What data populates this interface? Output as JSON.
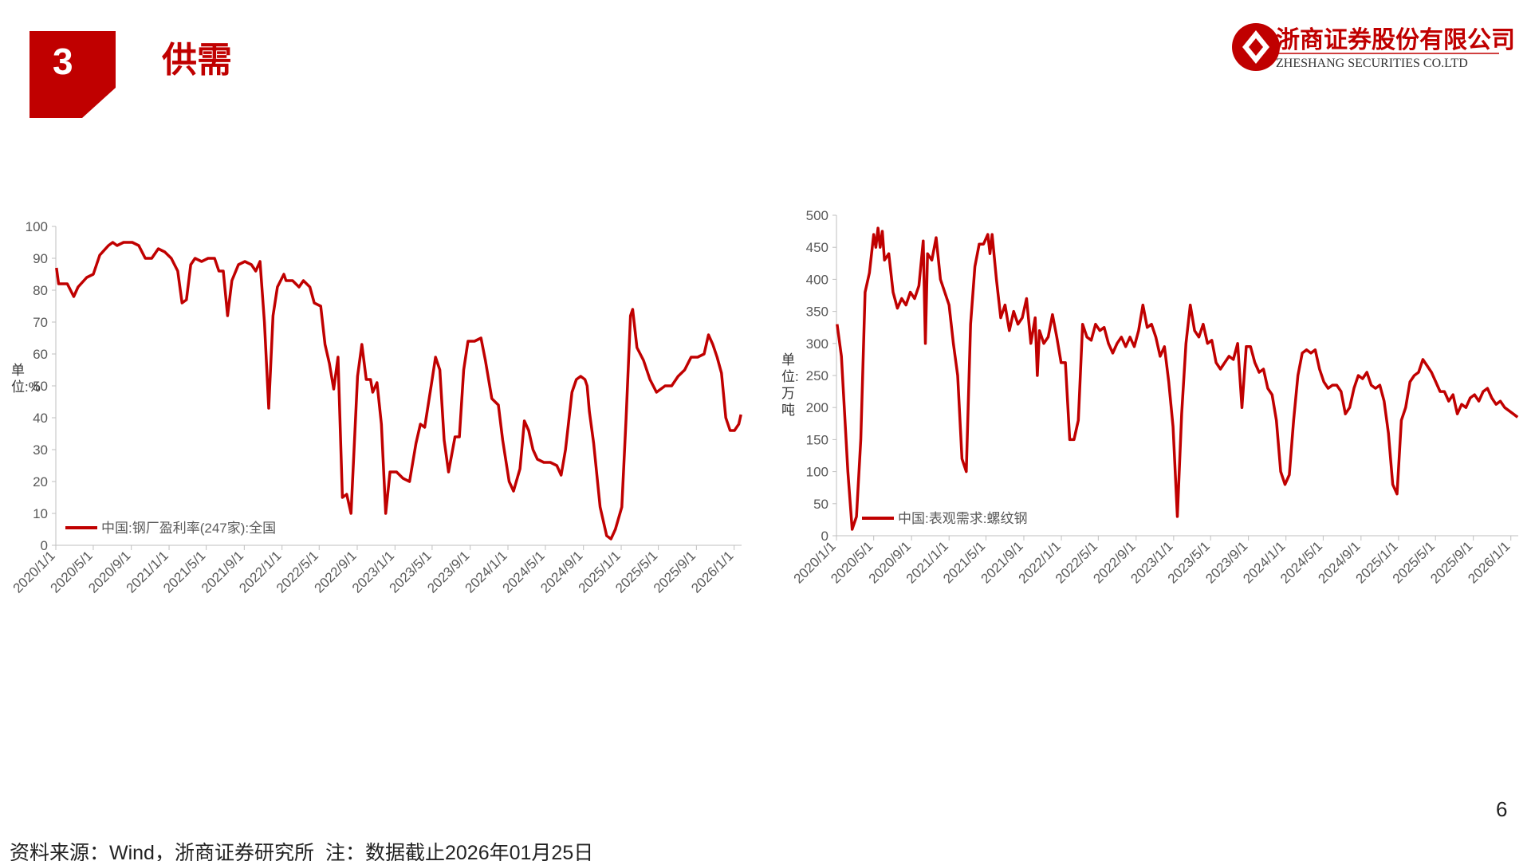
{
  "header": {
    "section_number": "3",
    "title": "供需",
    "logo_cn": "浙商证券股份有限公司",
    "logo_en": "ZHESHANG SECURITIES CO.LTD"
  },
  "chart_data": [
    {
      "type": "line",
      "y_label": "单位:%",
      "x": [
        "2020/1/3",
        "2020/1/10",
        "2020/2/7",
        "2020/2/28",
        "2020/3/13",
        "2020/4/10",
        "2020/5/1",
        "2020/5/22",
        "2020/6/19",
        "2020/7/3",
        "2020/7/17",
        "2020/8/7",
        "2020/9/4",
        "2020/9/25",
        "2020/10/16",
        "2020/11/6",
        "2020/11/27",
        "2020/12/18",
        "2021/1/8",
        "2021/1/29",
        "2021/2/12",
        "2021/2/26",
        "2021/3/12",
        "2021/3/26",
        "2021/4/16",
        "2021/5/7",
        "2021/5/28",
        "2021/6/11",
        "2021/6/25",
        "2021/7/9",
        "2021/7/23",
        "2021/8/13",
        "2021/9/3",
        "2021/9/24",
        "2021/10/8",
        "2021/10/22",
        "2021/11/5",
        "2021/11/19",
        "2021/12/3",
        "2021/12/17",
        "2022/1/7",
        "2022/1/14",
        "2022/2/4",
        "2022/2/25",
        "2022/3/11",
        "2022/4/1",
        "2022/4/15",
        "2022/5/6",
        "2022/5/20",
        "2022/6/3",
        "2022/6/17",
        "2022/7/1",
        "2022/7/15",
        "2022/7/29",
        "2022/8/12",
        "2022/9/2",
        "2022/9/16",
        "2022/9/30",
        "2022/10/14",
        "2022/10/21",
        "2022/11/4",
        "2022/11/18",
        "2022/12/2",
        "2022/12/16",
        "2023/1/6",
        "2023/1/27",
        "2023/2/17",
        "2023/3/10",
        "2023/3/24",
        "2023/4/7",
        "2023/4/28",
        "2023/5/12",
        "2023/5/26",
        "2023/6/9",
        "2023/6/23",
        "2023/7/14",
        "2023/7/28",
        "2023/8/11",
        "2023/8/25",
        "2023/9/15",
        "2023/10/6",
        "2023/10/20",
        "2023/11/10",
        "2023/12/1",
        "2023/12/15",
        "2024/1/5",
        "2024/1/19",
        "2024/2/9",
        "2024/2/23",
        "2024/3/8",
        "2024/3/22",
        "2024/4/5",
        "2024/4/26",
        "2024/5/17",
        "2024/6/7",
        "2024/6/21",
        "2024/7/5",
        "2024/7/26",
        "2024/8/9",
        "2024/8/23",
        "2024/9/6",
        "2024/9/13",
        "2024/9/20",
        "2024/10/4",
        "2024/10/25",
        "2024/11/15",
        "2024/11/29",
        "2024/12/13",
        "2025/1/3",
        "2025/1/17",
        "2025/1/31",
        "2025/2/7",
        "2025/2/21",
        "2025/3/14",
        "2025/4/4",
        "2025/4/25",
        "2025/5/9",
        "2025/5/23",
        "2025/6/13",
        "2025/7/4",
        "2025/7/25",
        "2025/8/15",
        "2025/9/5",
        "2025/9/26",
        "2025/10/10",
        "2025/10/24",
        "2025/11/7",
        "2025/11/21",
        "2025/12/5",
        "2025/12/19",
        "2026/1/2",
        "2026/1/16",
        "2026/1/23"
      ],
      "series": [
        {
          "name": "中国:钢厂盈利率(247家):全国",
          "color": "#c00000",
          "values": [
            87,
            82,
            82,
            78,
            81,
            84,
            85,
            91,
            94,
            95,
            94,
            95,
            95,
            94,
            90,
            90,
            93,
            92,
            90,
            86,
            76,
            77,
            88,
            90,
            89,
            90,
            90,
            86,
            86,
            72,
            83,
            88,
            89,
            88,
            86,
            89,
            70,
            43,
            72,
            81,
            85,
            83,
            83,
            81,
            83,
            81,
            76,
            75,
            63,
            57,
            49,
            59,
            15,
            16,
            10,
            53,
            63,
            52,
            52,
            48,
            51,
            38,
            10,
            23,
            23,
            21,
            20,
            32,
            38,
            37,
            50,
            59,
            55,
            33,
            23,
            34,
            34,
            55,
            64,
            64,
            65,
            58,
            46,
            44,
            33,
            20,
            17,
            24,
            39,
            36,
            30,
            27,
            26,
            26,
            25,
            22,
            30,
            48,
            52,
            53,
            52,
            50,
            42,
            32,
            12,
            3,
            2,
            5,
            12,
            40,
            72,
            74,
            62,
            58,
            52,
            48,
            49,
            50,
            50,
            53,
            55,
            59,
            59,
            60,
            66,
            63,
            59,
            54,
            40,
            36,
            36,
            38,
            41
          ]
        }
      ],
      "xlim": [
        "2020/1/1",
        "2026/1/25"
      ],
      "xticks": [
        "2020/1/1",
        "2020/5/1",
        "2020/9/1",
        "2021/1/1",
        "2021/5/1",
        "2021/9/1",
        "2022/1/1",
        "2022/5/1",
        "2022/9/1",
        "2023/1/1",
        "2023/5/1",
        "2023/9/1",
        "2024/1/1",
        "2024/5/1",
        "2024/9/1",
        "2025/1/1",
        "2025/5/1",
        "2025/9/1",
        "2026/1/1"
      ],
      "ylim": [
        0,
        100
      ],
      "yticks": [
        0,
        10,
        20,
        30,
        40,
        50,
        60,
        70,
        80,
        90,
        100
      ],
      "grid": false
    },
    {
      "type": "line",
      "y_label": "单位:万吨",
      "x": [
        "2020/1/3",
        "2020/1/17",
        "2020/2/7",
        "2020/2/21",
        "2020/3/6",
        "2020/3/20",
        "2020/4/3",
        "2020/4/17",
        "2020/5/1",
        "2020/5/8",
        "2020/5/15",
        "2020/5/22",
        "2020/5/29",
        "2020/6/5",
        "2020/6/19",
        "2020/7/3",
        "2020/7/17",
        "2020/7/31",
        "2020/8/14",
        "2020/8/28",
        "2020/9/11",
        "2020/9/25",
        "2020/10/9",
        "2020/10/16",
        "2020/10/23",
        "2020/11/6",
        "2020/11/20",
        "2020/12/4",
        "2020/12/18",
        "2021/1/1",
        "2021/1/15",
        "2021/1/29",
        "2021/2/12",
        "2021/2/26",
        "2021/3/12",
        "2021/3/26",
        "2021/4/9",
        "2021/4/23",
        "2021/5/7",
        "2021/5/14",
        "2021/5/21",
        "2021/6/4",
        "2021/6/18",
        "2021/7/2",
        "2021/7/16",
        "2021/7/30",
        "2021/8/13",
        "2021/8/27",
        "2021/9/10",
        "2021/9/24",
        "2021/10/8",
        "2021/10/15",
        "2021/10/22",
        "2021/11/5",
        "2021/11/19",
        "2021/12/3",
        "2021/12/17",
        "2021/12/31",
        "2022/1/14",
        "2022/1/28",
        "2022/2/11",
        "2022/2/25",
        "2022/3/11",
        "2022/3/25",
        "2022/4/8",
        "2022/4/22",
        "2022/5/6",
        "2022/5/20",
        "2022/6/3",
        "2022/6/17",
        "2022/7/1",
        "2022/7/15",
        "2022/7/29",
        "2022/8/12",
        "2022/8/26",
        "2022/9/9",
        "2022/9/23",
        "2022/10/7",
        "2022/10/21",
        "2022/11/4",
        "2022/11/18",
        "2022/12/2",
        "2022/12/16",
        "2022/12/30",
        "2023/1/13",
        "2023/1/27",
        "2023/2/10",
        "2023/2/24",
        "2023/3/10",
        "2023/3/24",
        "2023/4/7",
        "2023/4/21",
        "2023/5/5",
        "2023/5/19",
        "2023/6/2",
        "2023/6/16",
        "2023/6/30",
        "2023/7/14",
        "2023/7/28",
        "2023/8/11",
        "2023/8/25",
        "2023/9/8",
        "2023/9/22",
        "2023/10/6",
        "2023/10/20",
        "2023/11/3",
        "2023/11/17",
        "2023/12/1",
        "2023/12/15",
        "2023/12/29",
        "2024/1/12",
        "2024/1/26",
        "2024/2/9",
        "2024/2/23",
        "2024/3/8",
        "2024/3/22",
        "2024/4/5",
        "2024/4/19",
        "2024/5/3",
        "2024/5/17",
        "2024/5/31",
        "2024/6/14",
        "2024/6/28",
        "2024/7/12",
        "2024/7/26",
        "2024/8/9",
        "2024/8/23",
        "2024/9/6",
        "2024/9/20",
        "2024/10/4",
        "2024/10/18",
        "2024/11/1",
        "2024/11/15",
        "2024/11/29",
        "2024/12/13",
        "2024/12/27",
        "2025/1/10",
        "2025/1/24",
        "2025/2/7",
        "2025/2/21",
        "2025/3/7",
        "2025/3/21",
        "2025/4/4",
        "2025/4/18",
        "2025/5/2",
        "2025/5/16",
        "2025/5/30",
        "2025/6/13",
        "2025/6/27",
        "2025/7/11",
        "2025/7/25",
        "2025/8/8",
        "2025/8/22",
        "2025/9/5",
        "2025/9/19",
        "2025/10/3",
        "2025/10/17",
        "2025/10/31",
        "2025/11/14",
        "2025/11/28",
        "2025/12/12",
        "2025/12/26",
        "2026/1/9",
        "2026/1/23"
      ],
      "series": [
        {
          "name": "中国:表观需求:螺纹钢",
          "color": "#c00000",
          "values": [
            330,
            280,
            100,
            10,
            30,
            150,
            380,
            410,
            470,
            450,
            480,
            450,
            475,
            430,
            440,
            380,
            355,
            370,
            360,
            380,
            370,
            390,
            460,
            300,
            440,
            430,
            465,
            400,
            380,
            360,
            300,
            250,
            120,
            100,
            330,
            420,
            455,
            455,
            470,
            440,
            470,
            400,
            340,
            360,
            320,
            350,
            330,
            340,
            370,
            300,
            340,
            250,
            320,
            300,
            310,
            345,
            310,
            270,
            270,
            150,
            150,
            180,
            330,
            310,
            305,
            330,
            320,
            325,
            300,
            285,
            300,
            310,
            295,
            310,
            295,
            320,
            360,
            325,
            330,
            310,
            280,
            295,
            240,
            170,
            30,
            190,
            300,
            360,
            320,
            310,
            330,
            300,
            305,
            270,
            260,
            270,
            280,
            275,
            300,
            200,
            295,
            295,
            270,
            255,
            260,
            230,
            220,
            180,
            100,
            80,
            95,
            180,
            250,
            285,
            290,
            285,
            290,
            260,
            240,
            230,
            235,
            235,
            225,
            190,
            200,
            230,
            250,
            245,
            255,
            235,
            230,
            235,
            210,
            160,
            80,
            65,
            180,
            200,
            240,
            250,
            255,
            275,
            265,
            255,
            240,
            225,
            225,
            210,
            220,
            190,
            205,
            200,
            215,
            220,
            210,
            225,
            230,
            215,
            205,
            210,
            200,
            195,
            190,
            185
          ]
        }
      ],
      "xlim": [
        "2020/1/1",
        "2026/1/25"
      ],
      "xticks": [
        "2020/1/1",
        "2020/5/1",
        "2020/9/1",
        "2021/1/1",
        "2021/5/1",
        "2021/9/1",
        "2022/1/1",
        "2022/5/1",
        "2022/9/1",
        "2023/1/1",
        "2023/5/1",
        "2023/9/1",
        "2024/1/1",
        "2024/5/1",
        "2024/9/1",
        "2025/1/1",
        "2025/5/1",
        "2025/9/1",
        "2026/1/1"
      ],
      "ylim": [
        0,
        500
      ],
      "yticks": [
        0,
        50,
        100,
        150,
        200,
        250,
        300,
        350,
        400,
        450,
        500
      ],
      "grid": false
    }
  ],
  "footer": {
    "source": "资料来源：Wind，浙商证券研究所",
    "note": "注：数据截止2026年01月25日",
    "page_number": "6"
  }
}
